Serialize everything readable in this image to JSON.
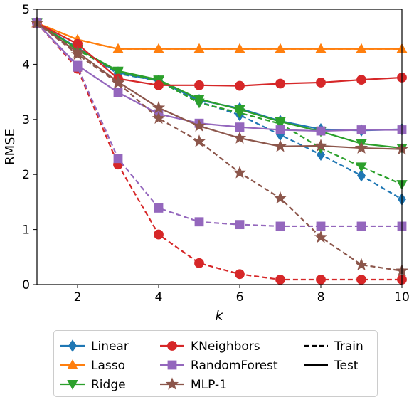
{
  "chart_data": {
    "type": "line",
    "title": "",
    "xlabel": "k",
    "ylabel": "RMSE",
    "xlim": [
      1,
      10
    ],
    "ylim": [
      0,
      5
    ],
    "xticks": [
      2,
      4,
      6,
      8,
      10
    ],
    "yticks": [
      0,
      1,
      2,
      3,
      4,
      5
    ],
    "grid": false,
    "legend_placement": "below",
    "x": [
      1,
      2,
      3,
      4,
      5,
      6,
      7,
      8,
      9,
      10
    ],
    "series": [
      {
        "name": "Linear",
        "split": "Test",
        "color": "#1f77b4",
        "marker": "diamond",
        "values": [
          4.75,
          4.3,
          3.85,
          3.7,
          3.35,
          3.2,
          2.97,
          2.82,
          2.8,
          2.82
        ]
      },
      {
        "name": "Linear",
        "split": "Train",
        "color": "#1f77b4",
        "marker": "diamond",
        "values": [
          4.75,
          4.28,
          3.83,
          3.7,
          3.32,
          3.08,
          2.72,
          2.36,
          1.98,
          1.55
        ]
      },
      {
        "name": "Lasso",
        "split": "Test",
        "color": "#ff7f0e",
        "marker": "triangle-up",
        "values": [
          4.75,
          4.45,
          4.28,
          4.28,
          4.28,
          4.28,
          4.28,
          4.28,
          4.28,
          4.28
        ]
      },
      {
        "name": "Lasso",
        "split": "Train",
        "color": "#ff7f0e",
        "marker": "triangle-up",
        "values": [
          4.75,
          4.45,
          4.28,
          4.28,
          4.28,
          4.28,
          4.28,
          4.28,
          4.28,
          4.28
        ]
      },
      {
        "name": "Ridge",
        "split": "Test",
        "color": "#2ca02c",
        "marker": "triangle-down",
        "values": [
          4.75,
          4.28,
          3.88,
          3.72,
          3.37,
          3.18,
          2.96,
          2.78,
          2.56,
          2.48
        ]
      },
      {
        "name": "Ridge",
        "split": "Train",
        "color": "#2ca02c",
        "marker": "triangle-down",
        "values": [
          4.75,
          4.26,
          3.86,
          3.7,
          3.3,
          3.12,
          2.92,
          2.48,
          2.14,
          1.82
        ]
      },
      {
        "name": "KNeighbors",
        "split": "Test",
        "color": "#d62728",
        "marker": "circle",
        "values": [
          4.75,
          4.37,
          3.74,
          3.62,
          3.62,
          3.61,
          3.65,
          3.67,
          3.72,
          3.76
        ]
      },
      {
        "name": "KNeighbors",
        "split": "Train",
        "color": "#d62728",
        "marker": "circle",
        "values": [
          4.75,
          3.92,
          2.18,
          0.91,
          0.39,
          0.19,
          0.09,
          0.09,
          0.09,
          0.09
        ]
      },
      {
        "name": "RandomForest",
        "split": "Test",
        "color": "#9467bd",
        "marker": "square",
        "values": [
          4.75,
          3.98,
          3.49,
          3.1,
          2.93,
          2.86,
          2.81,
          2.79,
          2.81,
          2.81
        ]
      },
      {
        "name": "RandomForest",
        "split": "Train",
        "color": "#9467bd",
        "marker": "square",
        "values": [
          4.75,
          3.95,
          2.29,
          1.39,
          1.14,
          1.09,
          1.06,
          1.06,
          1.06,
          1.06
        ]
      },
      {
        "name": "MLP-1",
        "split": "Test",
        "color": "#8c564b",
        "marker": "star",
        "values": [
          4.75,
          4.22,
          3.68,
          3.21,
          2.88,
          2.66,
          2.51,
          2.52,
          2.48,
          2.46
        ]
      },
      {
        "name": "MLP-1",
        "split": "Train",
        "color": "#8c564b",
        "marker": "star",
        "values": [
          4.75,
          4.18,
          3.66,
          3.02,
          2.6,
          2.03,
          1.57,
          0.86,
          0.36,
          0.25
        ]
      }
    ],
    "legend": {
      "models": [
        {
          "label": "Linear",
          "color": "#1f77b4",
          "marker": "diamond"
        },
        {
          "label": "Lasso",
          "color": "#ff7f0e",
          "marker": "triangle-up"
        },
        {
          "label": "Ridge",
          "color": "#2ca02c",
          "marker": "triangle-down"
        },
        {
          "label": "KNeighbors",
          "color": "#d62728",
          "marker": "circle"
        },
        {
          "label": "RandomForest",
          "color": "#9467bd",
          "marker": "square"
        },
        {
          "label": "MLP-1",
          "color": "#8c564b",
          "marker": "star"
        }
      ],
      "styles": [
        {
          "label": "Train",
          "dash": "dashed"
        },
        {
          "label": "Test",
          "dash": "solid"
        }
      ]
    }
  }
}
